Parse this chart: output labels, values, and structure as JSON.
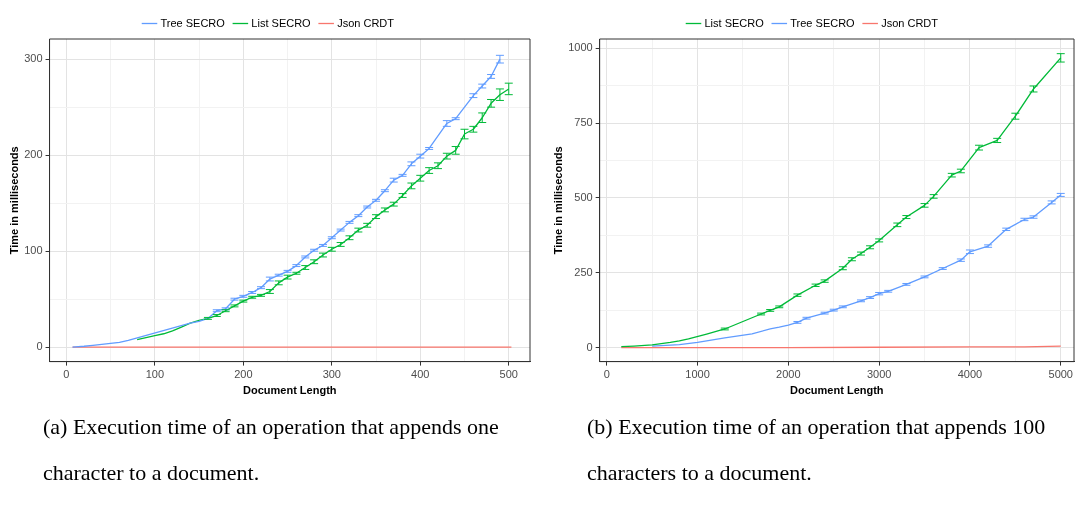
{
  "chart_data": [
    {
      "type": "line",
      "xlabel": "Document Length",
      "ylabel": "Time in milliseconds",
      "legend": "top",
      "grid": true,
      "xlim": [
        -19,
        524
      ],
      "xticks": [
        0,
        {
          "value": 50,
          "label": null
        },
        100,
        {
          "value": 150,
          "label": null
        },
        200,
        {
          "value": 250,
          "label": null
        },
        300,
        {
          "value": 350,
          "label": null
        },
        400,
        {
          "value": 450,
          "label": null
        },
        500
      ],
      "ylim": [
        -15,
        321
      ],
      "yticks": [
        0,
        {
          "value": 50,
          "label": null
        },
        100,
        {
          "value": 150,
          "label": null
        },
        200,
        {
          "value": 250,
          "label": null
        },
        300
      ],
      "annotations": [
        "(a) Execution time of an operation that appends one character to a document."
      ],
      "series": [
        {
          "name": "Tree SECRO",
          "color": "#619cff",
          "x": [
            7,
            20,
            30,
            40,
            50,
            60,
            70,
            140,
            150,
            160,
            170,
            180,
            190,
            200,
            210,
            220,
            230,
            240,
            250,
            260,
            270,
            280,
            290,
            300,
            310,
            320,
            330,
            340,
            350,
            360,
            370,
            380,
            390,
            400,
            410,
            430,
            440,
            460,
            470,
            480,
            490
          ],
          "values": [
            0,
            1,
            2,
            3,
            4,
            5,
            7,
            25,
            27,
            30,
            38,
            40,
            50,
            53,
            57,
            62,
            71,
            75,
            79,
            85,
            94,
            101,
            106,
            114,
            122,
            130,
            137,
            146,
            153,
            163,
            174,
            179,
            191,
            199,
            207,
            233,
            238,
            262,
            272,
            282,
            300
          ],
          "errors": [
            null,
            null,
            null,
            null,
            null,
            null,
            null,
            null,
            null,
            null,
            1,
            1,
            1,
            1,
            1,
            1,
            2,
            1,
            1,
            1,
            1,
            1,
            1,
            1,
            1,
            1,
            1,
            1,
            1,
            1,
            2,
            1,
            2,
            2,
            1,
            3,
            1,
            2,
            2,
            2,
            4
          ]
        },
        {
          "name": "List SECRO",
          "color": "#00ba38",
          "x": [
            80,
            90,
            100,
            110,
            120,
            130,
            140,
            150,
            160,
            170,
            180,
            190,
            200,
            210,
            220,
            230,
            240,
            250,
            260,
            270,
            280,
            290,
            300,
            310,
            320,
            330,
            340,
            350,
            360,
            370,
            380,
            390,
            400,
            410,
            420,
            430,
            440,
            450,
            460,
            470,
            480,
            490,
            500
          ],
          "values": [
            8,
            10,
            12,
            14,
            17,
            21,
            25,
            28,
            30,
            33,
            38,
            43,
            48,
            52,
            54,
            58,
            67,
            73,
            77,
            83,
            89,
            96,
            102,
            107,
            114,
            122,
            127,
            136,
            143,
            149,
            158,
            168,
            176,
            184,
            189,
            199,
            205,
            222,
            227,
            239,
            254,
            263,
            269
          ],
          "errors": [
            null,
            null,
            null,
            null,
            null,
            null,
            null,
            null,
            1,
            1,
            1,
            1,
            1,
            1,
            1,
            2,
            2,
            2,
            1,
            2,
            2,
            2,
            2,
            2,
            2,
            2,
            2,
            2,
            2,
            2,
            2,
            3,
            3,
            3,
            3,
            3,
            4,
            5,
            3,
            5,
            4,
            6,
            6
          ]
        },
        {
          "name": "Json CRDT",
          "color": "#f8766d",
          "x": [
            7,
            100,
            200,
            300,
            400,
            503
          ],
          "values": [
            0,
            0,
            0,
            0,
            0,
            0
          ]
        }
      ]
    },
    {
      "type": "line",
      "xlabel": "Document Length",
      "ylabel": "Time in milliseconds",
      "legend": "top",
      "grid": true,
      "xlim": [
        -78,
        5146
      ],
      "xticks": [
        0,
        {
          "value": 500,
          "label": null
        },
        1000,
        {
          "value": 1500,
          "label": null
        },
        2000,
        {
          "value": 2500,
          "label": null
        },
        3000,
        {
          "value": 3500,
          "label": null
        },
        4000,
        {
          "value": 4500,
          "label": null
        },
        5000
      ],
      "ylim": [
        -47,
        1031
      ],
      "yticks": [
        0,
        {
          "value": 125,
          "label": null
        },
        250,
        {
          "value": 375,
          "label": null
        },
        500,
        {
          "value": 625,
          "label": null
        },
        750,
        {
          "value": 875,
          "label": null
        },
        1000
      ],
      "annotations": [
        "(b) Execution time of an operation that appends 100 characters to a document."
      ],
      "series": [
        {
          "name": "List SECRO",
          "color": "#00ba38",
          "x": [
            160,
            300,
            500,
            700,
            800,
            900,
            1100,
            1300,
            1700,
            1800,
            1900,
            2100,
            2300,
            2400,
            2600,
            2700,
            2800,
            2900,
            3000,
            3200,
            3300,
            3500,
            3600,
            3800,
            3900,
            4100,
            4300,
            4500,
            4700,
            5000
          ],
          "values": [
            3,
            5,
            9,
            17,
            22,
            29,
            45,
            62,
            112,
            124,
            136,
            175,
            208,
            222,
            265,
            295,
            314,
            335,
            358,
            410,
            436,
            475,
            505,
            576,
            590,
            668,
            692,
            773,
            864,
            968
          ],
          "errors": [
            null,
            null,
            null,
            null,
            null,
            null,
            null,
            3,
            3,
            3,
            3,
            4,
            4,
            4,
            5,
            5,
            5,
            5,
            5,
            6,
            5,
            6,
            6,
            6,
            6,
            8,
            7,
            10,
            10,
            14
          ]
        },
        {
          "name": "Tree SECRO",
          "color": "#619cff",
          "x": [
            500,
            800,
            1000,
            1300,
            1600,
            1800,
            1900,
            2000,
            2100,
            2200,
            2400,
            2500,
            2600,
            2800,
            2900,
            3000,
            3100,
            3300,
            3500,
            3700,
            3900,
            4000,
            4200,
            4400,
            4600,
            4700,
            4900,
            5000
          ],
          "values": [
            5,
            10,
            17,
            32,
            46,
            62,
            68,
            75,
            84,
            98,
            115,
            125,
            136,
            156,
            167,
            180,
            188,
            211,
            236,
            264,
            292,
            320,
            339,
            395,
            428,
            436,
            485,
            510
          ],
          "errors": [
            null,
            null,
            null,
            null,
            null,
            null,
            null,
            null,
            3,
            3,
            3,
            3,
            3,
            3,
            3,
            4,
            3,
            3,
            3,
            3,
            4,
            6,
            4,
            4,
            4,
            4,
            5,
            5
          ]
        },
        {
          "name": "Json CRDT",
          "color": "#f8766d",
          "x": [
            160,
            1000,
            2000,
            3000,
            4000,
            4600,
            5000
          ],
          "values": [
            0,
            0,
            0,
            1,
            2,
            2,
            5
          ]
        }
      ]
    }
  ]
}
